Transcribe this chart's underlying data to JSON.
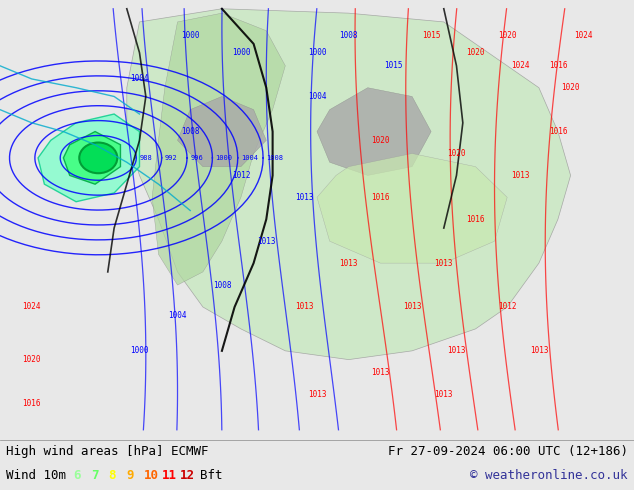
{
  "title_left": "High wind areas [hPa] ECMWF",
  "title_right": "Fr 27-09-2024 06:00 UTC (12+186)",
  "legend_left": "Wind 10m",
  "legend_numbers": [
    "6",
    "7",
    "8",
    "9",
    "10",
    "11",
    "12"
  ],
  "legend_unit": "Bft",
  "legend_colors": [
    "#99ff99",
    "#66ff66",
    "#ffff00",
    "#ffaa00",
    "#ff6600",
    "#ff0000",
    "#cc0000"
  ],
  "copyright": "© weatheronline.co.uk",
  "bg_color": "#e8e8e8",
  "map_bg": "#ddeeff",
  "bottom_bar_color": "#d0d0d0",
  "figsize": [
    6.34,
    4.9
  ],
  "dpi": 100,
  "bottom_bar_height": 0.105,
  "land_color": "#c8e8c0",
  "storm_color_outer": "#80ffcc",
  "storm_color_inner": "#40ff80",
  "storm_color_core": "#00dd55"
}
